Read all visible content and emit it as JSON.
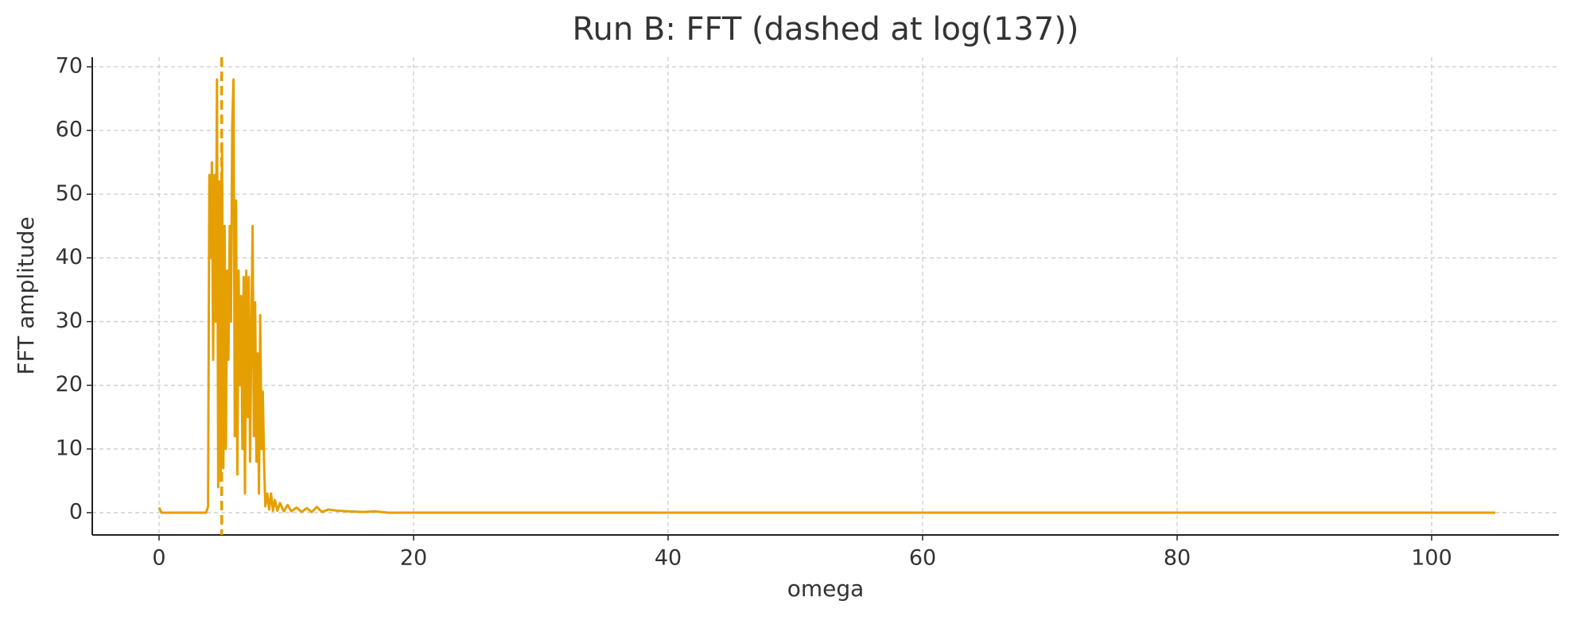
{
  "chart_data": {
    "type": "line",
    "title": "Run B: FFT (dashed at log(137))",
    "xlabel": "omega",
    "ylabel": "FFT amplitude",
    "x": [
      0,
      0.2,
      3.7,
      3.85,
      3.95,
      4.05,
      4.15,
      4.25,
      4.35,
      4.45,
      4.55,
      4.65,
      4.75,
      4.85,
      4.95,
      5.05,
      5.15,
      5.25,
      5.35,
      5.45,
      5.55,
      5.65,
      5.75,
      5.85,
      5.95,
      6.05,
      6.15,
      6.25,
      6.35,
      6.45,
      6.55,
      6.65,
      6.75,
      6.85,
      6.95,
      7.05,
      7.15,
      7.25,
      7.35,
      7.45,
      7.55,
      7.65,
      7.75,
      7.85,
      7.95,
      8.05,
      8.15,
      8.25,
      8.35,
      8.5,
      8.65,
      8.8,
      8.95,
      9.1,
      9.3,
      9.5,
      9.8,
      10.1,
      10.4,
      10.8,
      11.2,
      11.6,
      12,
      12.4,
      12.8,
      13.3,
      14,
      15,
      16,
      17,
      18,
      105
    ],
    "values": [
      0.8,
      0,
      0,
      1,
      53,
      40,
      55,
      24,
      53,
      30,
      68,
      4,
      52,
      5,
      58,
      7,
      45,
      10,
      38,
      24,
      45,
      30,
      61,
      68,
      12,
      49,
      6,
      38,
      20,
      34,
      10,
      37,
      3,
      38,
      15,
      37,
      8,
      28,
      45,
      12,
      33,
      8,
      25,
      3,
      31,
      10,
      19,
      8,
      1,
      3,
      0.5,
      3,
      0.3,
      2,
      0.3,
      1.5,
      0.2,
      1.2,
      0.2,
      0.8,
      0.1,
      0.7,
      0.1,
      0.9,
      0.1,
      0.5,
      0.3,
      0.2,
      0.1,
      0.2,
      0,
      0
    ],
    "color": "#E69F00",
    "vline": 4.92,
    "xlim": [
      -5.25,
      110
    ],
    "ylim": [
      -3.5,
      71.5
    ],
    "xticks": [
      0,
      20,
      40,
      60,
      80,
      100
    ],
    "yticks": [
      0,
      10,
      20,
      30,
      40,
      50,
      60,
      70
    ],
    "grid": true
  }
}
